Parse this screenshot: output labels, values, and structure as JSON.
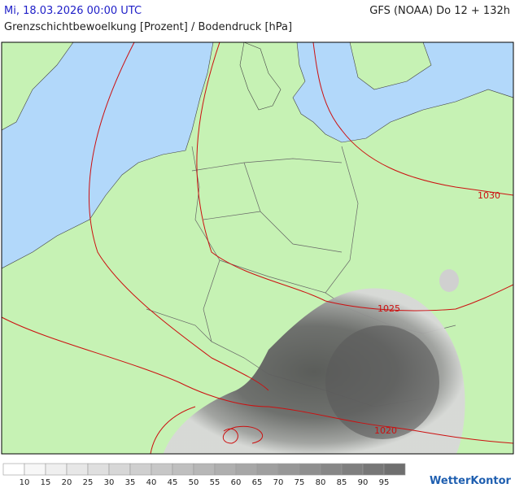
{
  "header": {
    "datetime": "Mi, 18.03.2026 00:00 UTC",
    "model": "GFS (NOAA) Do 12 + 132h",
    "title": "Grenzschichtbewoelkung [Prozent] / Bodendruck [hPa]"
  },
  "map": {
    "isobar_labels": [
      "1030",
      "1025",
      "1020"
    ]
  },
  "legend": {
    "labels": [
      "10",
      "15",
      "20",
      "25",
      "30",
      "35",
      "40",
      "45",
      "50",
      "55",
      "60",
      "65",
      "70",
      "75",
      "80",
      "85",
      "90",
      "95"
    ],
    "colors": [
      "#ffffff",
      "#f7f7f7",
      "#efefef",
      "#e7e7e7",
      "#dfdfdf",
      "#d7d7d7",
      "#cfcfcf",
      "#c7c7c7",
      "#bfbfbf",
      "#b7b7b7",
      "#afafaf",
      "#a7a7a7",
      "#9f9f9f",
      "#979797",
      "#8f8f8f",
      "#878787",
      "#7f7f7f",
      "#777777",
      "#6f6f6f"
    ]
  },
  "logo": "WetterKontor"
}
